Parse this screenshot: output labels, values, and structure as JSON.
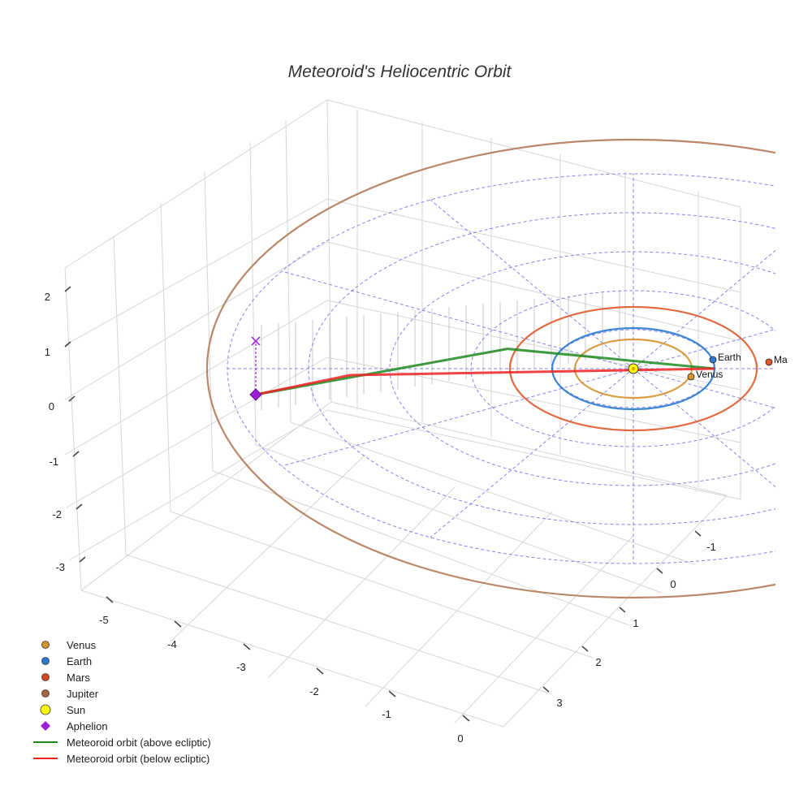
{
  "chart_data": {
    "type": "scatter3d",
    "title": "Meteoroid's Heliocentric Orbit",
    "axes": {
      "x": {
        "label": "",
        "ticks": [
          "-5",
          "-4",
          "-3",
          "-2",
          "-1",
          "0"
        ]
      },
      "y": {
        "label": "",
        "ticks": [
          "-1",
          "0",
          "1",
          "2",
          "3"
        ]
      },
      "z": {
        "label": "",
        "ticks": [
          "2",
          "1",
          "0",
          "-1",
          "-2",
          "-3"
        ]
      }
    },
    "grid": true,
    "ecliptic_grid": {
      "rings_au": [
        1,
        2,
        3,
        4,
        5
      ],
      "spokes": 12,
      "style": "dashed",
      "color": "#6f6ff0"
    },
    "planets": [
      {
        "name": "Venus",
        "label": "Venus",
        "semi_major_au": 0.72,
        "color": "#d4952e",
        "position": [
          0.7,
          0.12
        ]
      },
      {
        "name": "Earth",
        "label": "Earth",
        "semi_major_au": 1.0,
        "color": "#2a7bd0",
        "position": [
          1.0,
          0.0
        ]
      },
      {
        "name": "Mars",
        "label": "Ma",
        "semi_major_au": 1.52,
        "color": "#e05a2e",
        "position": [
          1.52,
          0.0
        ]
      },
      {
        "name": "Jupiter",
        "label": "",
        "semi_major_au": 5.2,
        "color": "#b37b5a"
      }
    ],
    "sun": {
      "name": "Sun",
      "position": [
        0,
        0,
        0
      ],
      "color": "#ffff00"
    },
    "aphelion": {
      "name": "Aphelion",
      "position": [
        -4.6,
        0.25,
        -0.35
      ],
      "color": "#9a1fd6",
      "projection_marker": "x"
    },
    "series": [
      {
        "name": "Meteoroid orbit (above ecliptic)",
        "color": "#1f8a1f",
        "points": [
          [
            1.0,
            0.0,
            0.0
          ],
          [
            -1.5,
            0.25,
            0.12
          ],
          [
            -4.6,
            0.25,
            -0.35
          ]
        ]
      },
      {
        "name": "Meteoroid orbit (below ecliptic)",
        "color": "#ee2222",
        "points": [
          [
            1.0,
            0.0,
            0.0
          ],
          [
            -3.5,
            -0.05,
            -0.05
          ],
          [
            -4.6,
            0.25,
            -0.35
          ]
        ]
      }
    ],
    "legend": {
      "position": "bottom-left",
      "entries": [
        {
          "label": "Venus",
          "symbol": "circle",
          "color": "#d4952e"
        },
        {
          "label": "Earth",
          "symbol": "circle",
          "color": "#2a7bd0"
        },
        {
          "label": "Mars",
          "symbol": "circle",
          "color": "#d24a1e"
        },
        {
          "label": "Jupiter",
          "symbol": "circle",
          "color": "#a9643d"
        },
        {
          "label": "Sun",
          "symbol": "circle-large",
          "color": "#ffff00"
        },
        {
          "label": "Aphelion",
          "symbol": "diamond",
          "color": "#9a1fd6"
        },
        {
          "label": "Meteoroid orbit (above ecliptic)",
          "symbol": "line",
          "color": "#1f8a1f"
        },
        {
          "label": "Meteoroid orbit (below ecliptic)",
          "symbol": "line",
          "color": "#ee2222"
        }
      ]
    }
  }
}
